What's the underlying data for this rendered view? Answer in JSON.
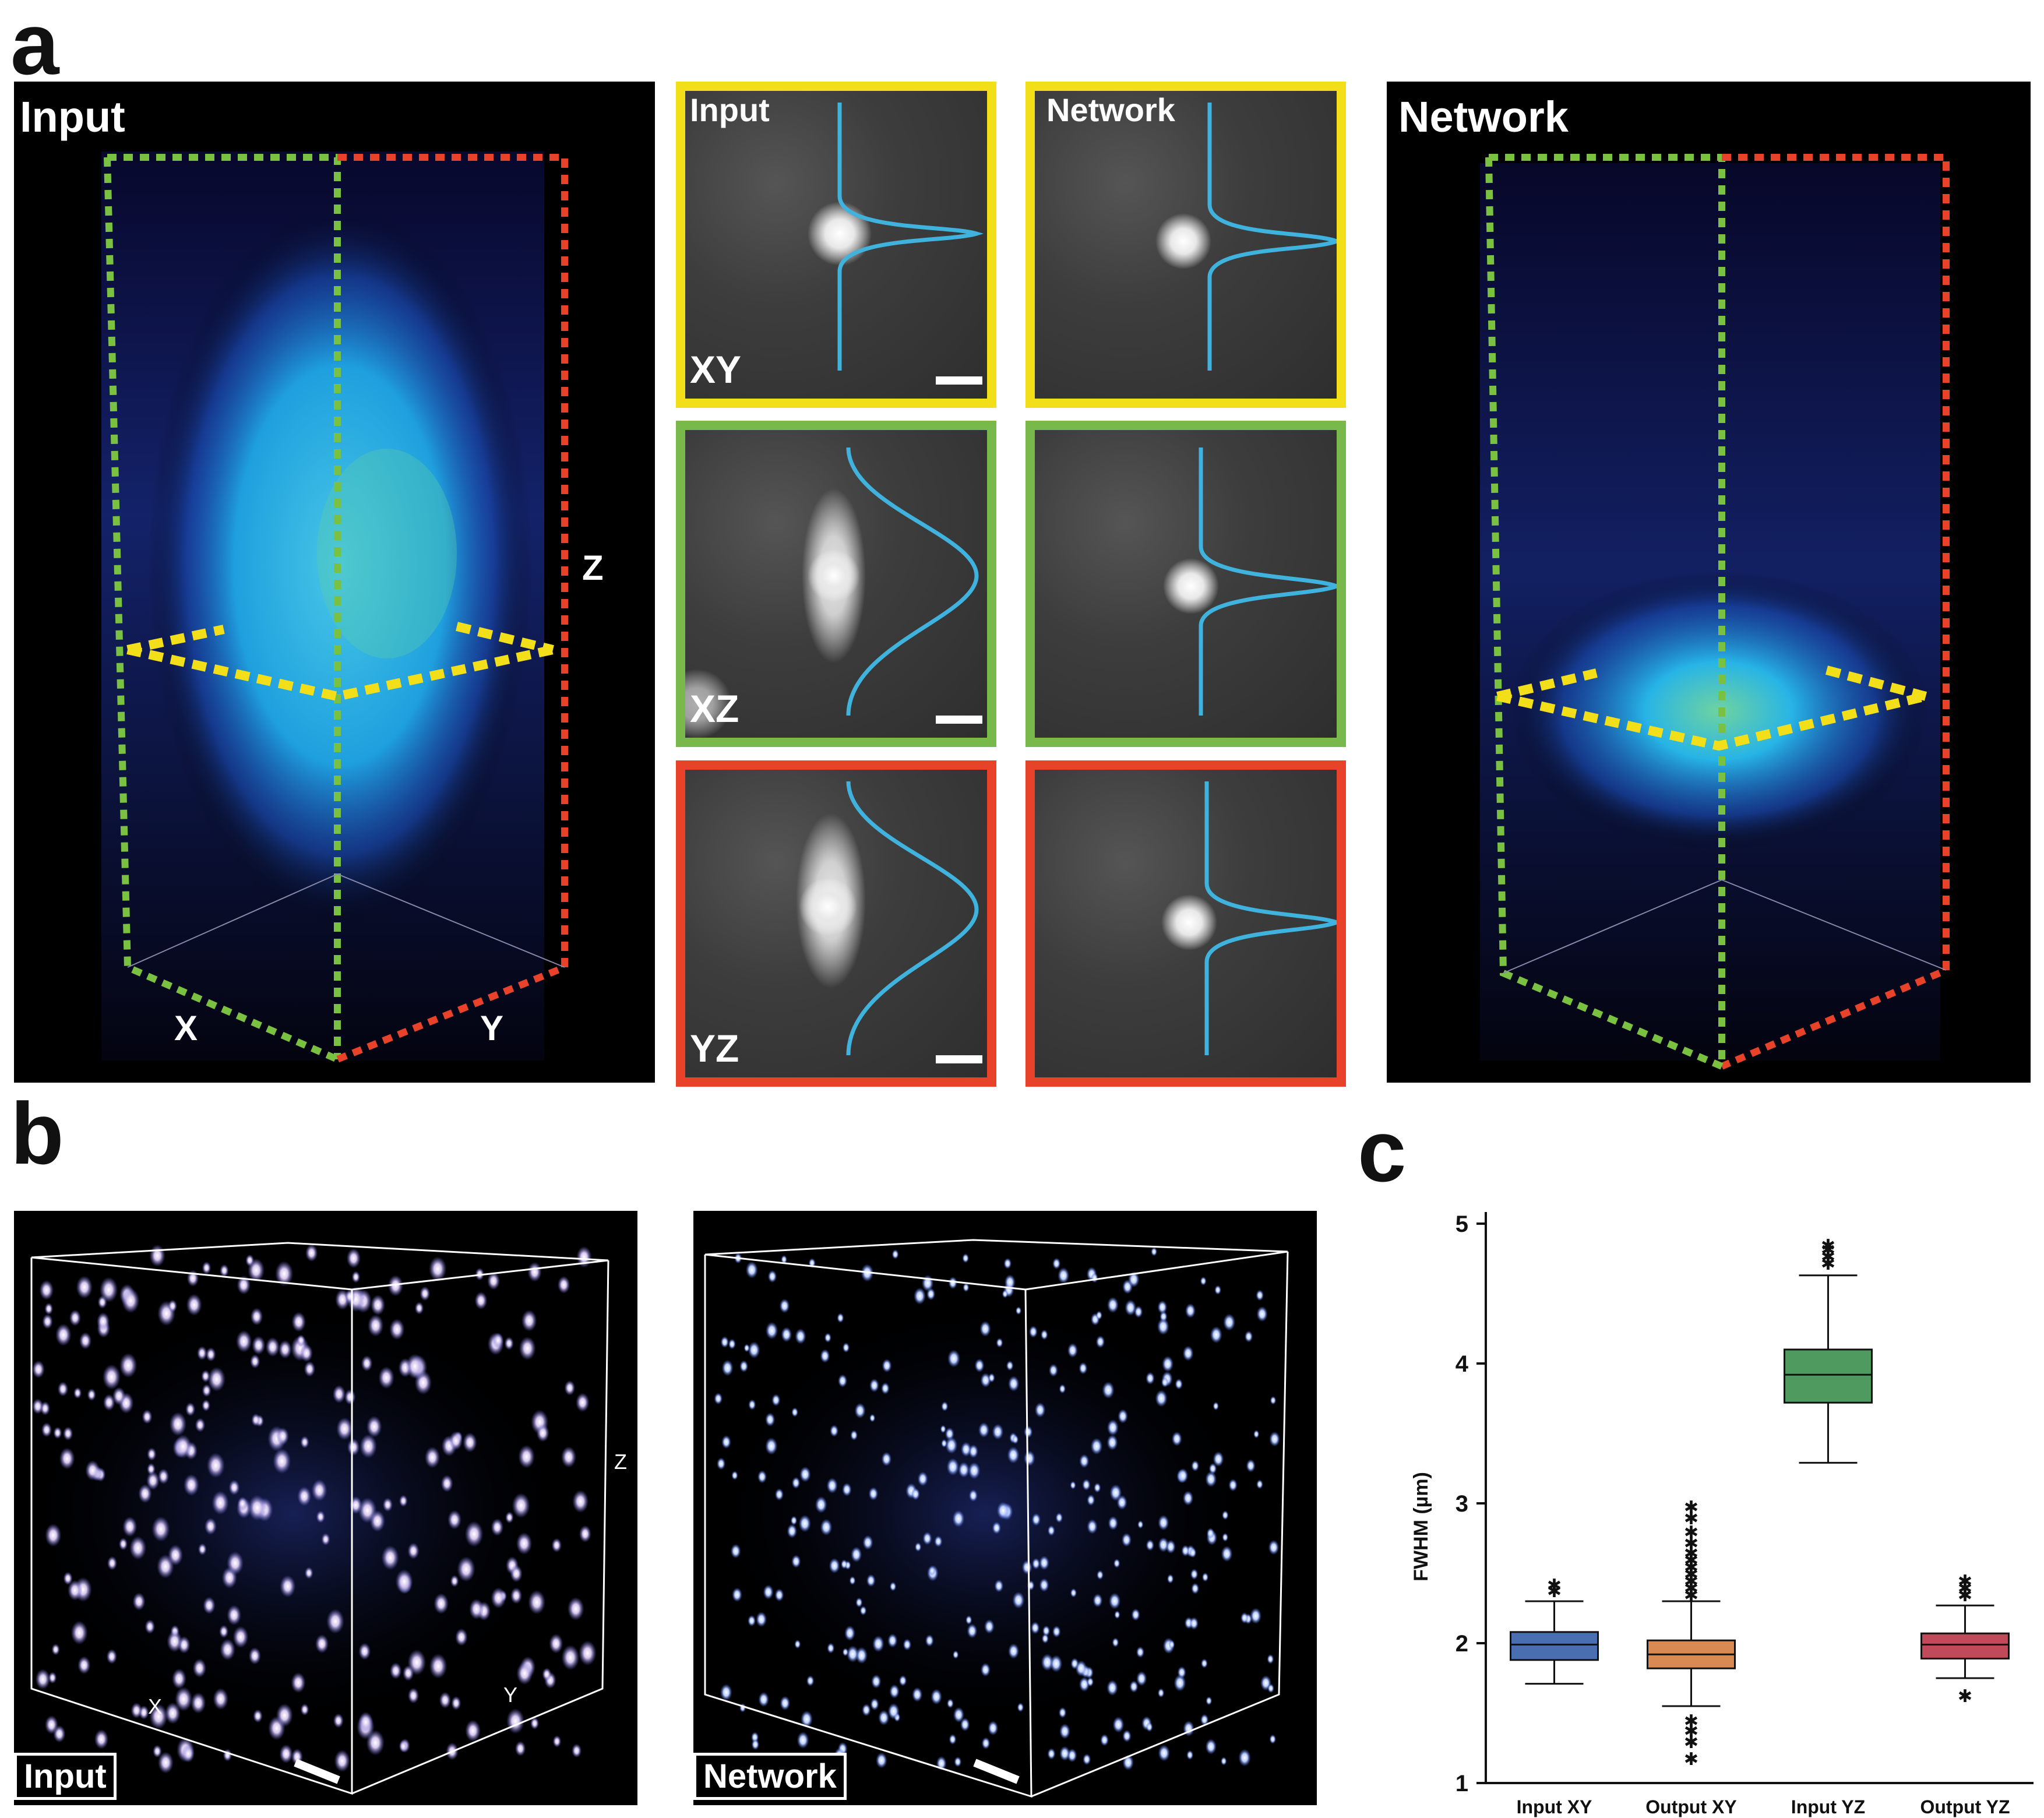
{
  "panels": {
    "a": "a",
    "b": "b",
    "c": "c"
  },
  "panel_a": {
    "left_volume_label": "Input",
    "right_volume_label": "Network",
    "axes": {
      "x": "X",
      "y": "Y",
      "z": "Z"
    },
    "tiles": {
      "input_header": "Input",
      "network_header": "Network",
      "planes": [
        "XY",
        "XZ",
        "YZ"
      ]
    },
    "frame_colors": {
      "xy": "#f2df1a",
      "xz": "#79b84a",
      "yz": "#e8432a"
    },
    "profile_color": "#3fb3dd"
  },
  "panel_b": {
    "left_label": "Input",
    "right_label": "Network",
    "axes": {
      "x": "X",
      "y": "Y",
      "z": "Z"
    }
  },
  "chart_data": {
    "type": "box",
    "ylabel": "FWHM (µm)",
    "ylim": [
      1,
      5
    ],
    "yticks": [
      1,
      2,
      3,
      4,
      5
    ],
    "categories": [
      "Input XY",
      "Output XY",
      "Input YZ",
      "Output YZ"
    ],
    "colors": [
      "#4a6fb0",
      "#d98a52",
      "#4f9a5e",
      "#c04a5a"
    ],
    "boxes": [
      {
        "q1": 1.88,
        "median": 1.99,
        "q3": 2.08,
        "whisker_low": 1.71,
        "whisker_high": 2.3,
        "outliers": [
          2.38,
          2.42
        ]
      },
      {
        "q1": 1.82,
        "median": 1.92,
        "q3": 2.02,
        "whisker_low": 1.55,
        "whisker_high": 2.3,
        "outliers": [
          2.35,
          2.4,
          2.45,
          2.5,
          2.55,
          2.6,
          2.65,
          2.72,
          2.8,
          2.9,
          2.98,
          1.45,
          1.38,
          1.3,
          1.18
        ]
      },
      {
        "q1": 3.72,
        "median": 3.92,
        "q3": 4.1,
        "whisker_low": 3.29,
        "whisker_high": 4.63,
        "outliers": [
          4.72,
          4.77,
          4.82,
          4.85
        ]
      },
      {
        "q1": 1.89,
        "median": 1.99,
        "q3": 2.07,
        "whisker_low": 1.75,
        "whisker_high": 2.27,
        "outliers": [
          2.35,
          2.4,
          2.45,
          1.63
        ]
      }
    ]
  }
}
